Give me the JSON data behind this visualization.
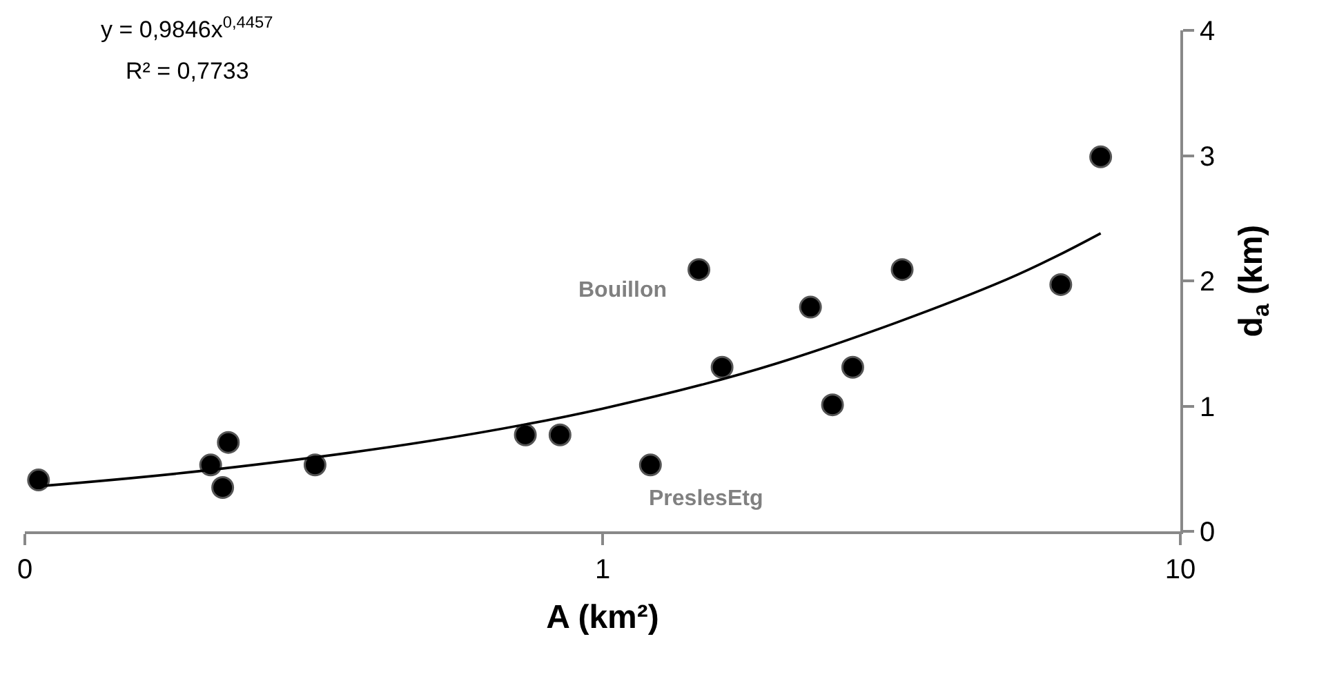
{
  "chart_data": {
    "type": "scatter",
    "xlabel": "A (km²)",
    "ylabel": "d$_{a}$ (km)",
    "log": "x",
    "xlim": [
      0.1,
      10
    ],
    "xticks": [
      {
        "value": 0.1,
        "label": "0"
      },
      1,
      10
    ],
    "ylim": [
      0,
      4
    ],
    "yticks": [
      0,
      1,
      2,
      3,
      4
    ],
    "marker": "circle",
    "series": [
      {
        "color": "#000000",
        "x": [
          0.1056,
          0.2097,
          0.225,
          0.22,
          0.3179,
          0.735,
          0.844,
          1.21,
          1.468,
          1.61,
          2.29,
          2.5,
          2.71,
          3.3,
          6.21,
          7.28
        ],
        "values": [
          0.41,
          0.53,
          0.71,
          0.35,
          0.53,
          0.77,
          0.77,
          0.53,
          2.09,
          1.31,
          1.79,
          1.01,
          1.31,
          2.09,
          1.97,
          2.99
        ]
      },
      {
        "type": "line",
        "color": "#000000",
        "marker": "none",
        "line_style": "solid",
        "x": [
          0.1056,
          0.2,
          0.5,
          1,
          2,
          5,
          7.28
        ],
        "values": [
          0.36,
          0.48,
          0.72,
          0.98,
          1.34,
          2.01,
          2.38
        ]
      }
    ],
    "annotations": [
      "y = 0,9846x$^{0,4457}$",
      "R² = 0,7733",
      {
        "text": "Bouillon",
        "x": 1.468,
        "y": 2.09
      },
      {
        "text": "PreslesEtg",
        "x": 1.21,
        "y": 0.53
      }
    ]
  }
}
